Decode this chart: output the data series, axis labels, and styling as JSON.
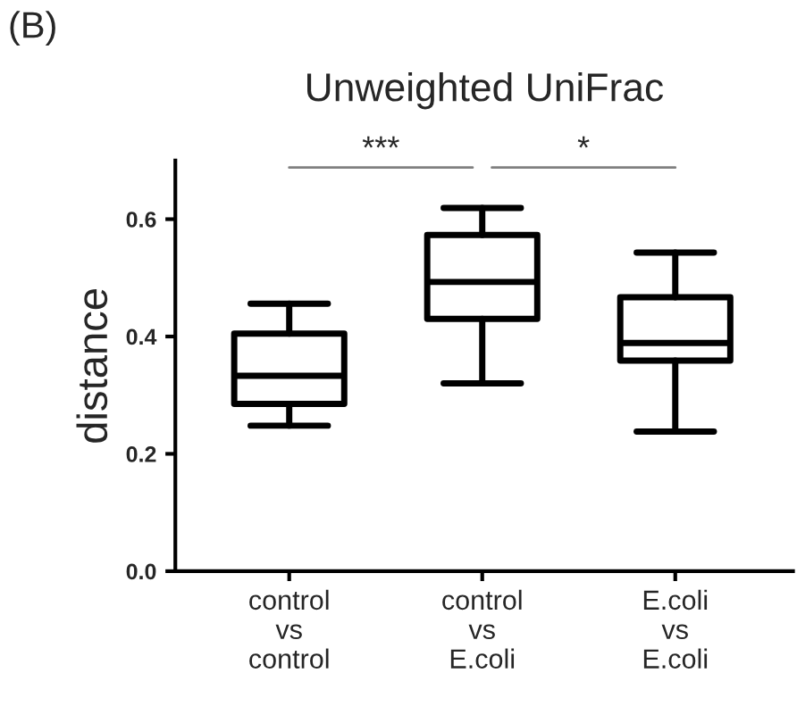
{
  "chart_data": {
    "type": "box",
    "title": "Unweighted UniFrac",
    "ylabel": "distance",
    "categories": [
      "control\nvs\ncontrol",
      "control\nvs\nE.coli",
      "E.coli\nvs\nE.coli"
    ],
    "boxes": [
      {
        "low": 0.248,
        "q1": 0.285,
        "median": 0.333,
        "q3": 0.405,
        "high": 0.456
      },
      {
        "low": 0.32,
        "q1": 0.43,
        "median": 0.493,
        "q3": 0.573,
        "high": 0.619
      },
      {
        "low": 0.238,
        "q1": 0.359,
        "median": 0.389,
        "q3": 0.467,
        "high": 0.543
      }
    ],
    "color": "#000000",
    "ylim": [
      0,
      0.7
    ],
    "yticks": [
      {
        "value": 0,
        "label": "0.0"
      },
      {
        "value": 0.2,
        "label": "0.2"
      },
      {
        "value": 0.4,
        "label": "0.4"
      },
      {
        "value": 0.6,
        "label": "0.6"
      }
    ],
    "annotations": [
      "(B)",
      "***",
      "*"
    ],
    "grid": false,
    "legend": false
  }
}
